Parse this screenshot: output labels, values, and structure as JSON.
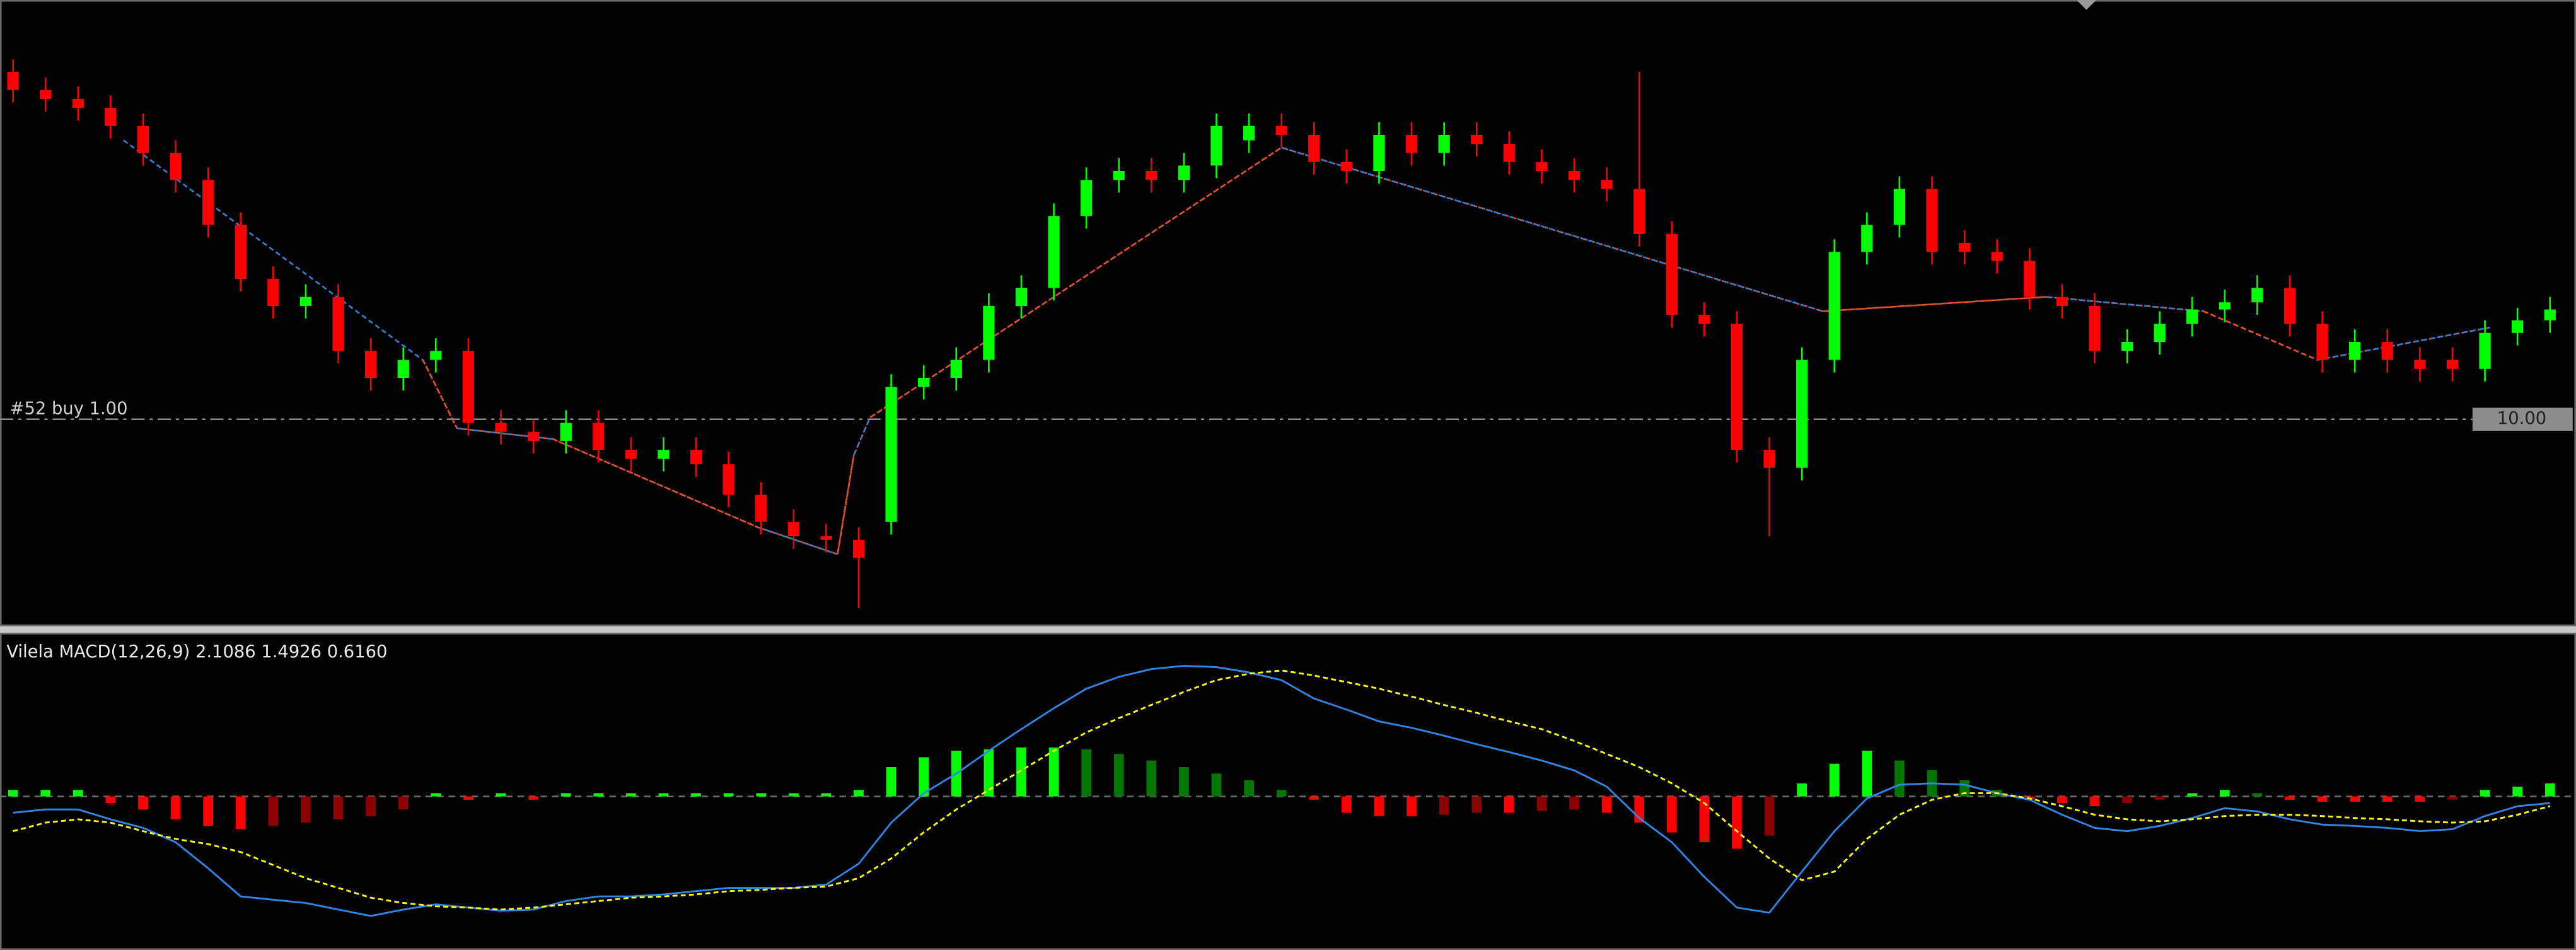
{
  "chart_data": [
    {
      "type": "candlestick",
      "open": [
        11.93,
        11.83,
        11.78,
        11.73,
        11.63,
        11.48,
        11.33,
        11.08,
        10.78,
        10.63,
        10.68,
        10.38,
        10.23,
        10.33,
        10.38,
        9.98,
        9.93,
        9.88,
        9.98,
        9.83,
        9.78,
        9.83,
        9.75,
        9.58,
        9.43,
        9.35,
        9.33,
        9.43,
        10.18,
        10.23,
        10.33,
        10.63,
        10.73,
        11.13,
        11.33,
        11.38,
        11.33,
        11.41,
        11.55,
        11.63,
        11.58,
        11.43,
        11.38,
        11.58,
        11.48,
        11.58,
        11.53,
        11.43,
        11.38,
        11.33,
        11.28,
        11.03,
        10.58,
        10.53,
        9.83,
        9.73,
        10.33,
        10.93,
        11.08,
        11.28,
        10.98,
        10.93,
        10.88,
        10.68,
        10.63,
        10.38,
        10.43,
        10.53,
        10.61,
        10.65,
        10.73,
        10.53,
        10.33,
        10.43,
        10.33,
        10.33,
        10.28,
        10.48,
        10.55
      ],
      "high": [
        12.0,
        11.9,
        11.85,
        11.8,
        11.7,
        11.55,
        11.4,
        11.15,
        10.85,
        10.75,
        10.75,
        10.45,
        10.4,
        10.45,
        10.45,
        10.05,
        10.0,
        10.05,
        10.05,
        9.9,
        9.9,
        9.9,
        9.82,
        9.65,
        9.5,
        9.42,
        9.4,
        10.25,
        10.3,
        10.4,
        10.7,
        10.8,
        11.2,
        11.4,
        11.45,
        11.45,
        11.48,
        11.7,
        11.7,
        11.7,
        11.65,
        11.5,
        11.65,
        11.65,
        11.65,
        11.65,
        11.6,
        11.5,
        11.45,
        11.4,
        11.93,
        11.1,
        10.65,
        10.6,
        9.9,
        10.4,
        11.0,
        11.15,
        11.35,
        11.35,
        11.05,
        11.0,
        10.95,
        10.75,
        10.7,
        10.5,
        10.6,
        10.68,
        10.72,
        10.8,
        10.8,
        10.6,
        10.5,
        10.5,
        10.4,
        10.4,
        10.55,
        10.62,
        10.68
      ],
      "low": [
        11.76,
        11.71,
        11.66,
        11.56,
        11.41,
        11.26,
        11.01,
        10.71,
        10.56,
        10.56,
        10.31,
        10.16,
        10.16,
        10.26,
        9.91,
        9.86,
        9.81,
        9.81,
        9.76,
        9.71,
        9.71,
        9.68,
        9.51,
        9.36,
        9.28,
        9.26,
        8.95,
        9.36,
        10.11,
        10.16,
        10.26,
        10.56,
        10.66,
        11.06,
        11.26,
        11.26,
        11.26,
        11.34,
        11.48,
        11.51,
        11.36,
        11.31,
        11.31,
        11.41,
        11.41,
        11.46,
        11.36,
        11.31,
        11.26,
        11.21,
        10.96,
        10.51,
        10.46,
        9.76,
        9.35,
        9.66,
        10.26,
        10.86,
        11.01,
        10.86,
        10.86,
        10.81,
        10.61,
        10.56,
        10.31,
        10.31,
        10.36,
        10.46,
        10.54,
        10.58,
        10.46,
        10.26,
        10.26,
        10.26,
        10.21,
        10.21,
        10.21,
        10.41,
        10.48
      ],
      "close": [
        11.83,
        11.78,
        11.73,
        11.63,
        11.48,
        11.33,
        11.08,
        10.78,
        10.63,
        10.68,
        10.38,
        10.23,
        10.33,
        10.38,
        9.98,
        9.93,
        9.88,
        9.98,
        9.83,
        9.78,
        9.83,
        9.75,
        9.58,
        9.43,
        9.35,
        9.33,
        9.23,
        10.18,
        10.23,
        10.33,
        10.63,
        10.73,
        11.13,
        11.33,
        11.38,
        11.33,
        11.41,
        11.63,
        11.63,
        11.58,
        11.43,
        11.38,
        11.58,
        11.48,
        11.58,
        11.53,
        11.43,
        11.38,
        11.33,
        11.28,
        11.03,
        10.58,
        10.53,
        9.83,
        9.73,
        10.33,
        10.93,
        11.08,
        11.28,
        10.93,
        10.93,
        10.88,
        10.68,
        10.63,
        10.38,
        10.43,
        10.53,
        10.61,
        10.65,
        10.73,
        10.53,
        10.33,
        10.43,
        10.33,
        10.28,
        10.28,
        10.48,
        10.55,
        10.61
      ],
      "up_color": "#00ff00",
      "down_color": "#ff0000",
      "xlim": [
        -0.4,
        78.8
      ],
      "ylim": [
        8.85,
        12.33
      ],
      "trend": {
        "x": [
          3.4,
          12.6,
          13.65,
          16.6,
          22.9,
          25.35,
          25.85,
          26.35,
          39,
          55.65,
          62.5,
          67.35,
          70.85,
          76.15
        ],
        "values": [
          11.55,
          10.33,
          9.95,
          9.89,
          9.4,
          9.25,
          9.8,
          10.01,
          11.51,
          10.6,
          10.68,
          10.6,
          10.33,
          10.51
        ],
        "segment_colors": [
          "#e0502a",
          "#2a7fd8"
        ]
      },
      "order_line": {
        "label": "#52 buy 1.00",
        "price": {
          "value": 10,
          "label": "10.00"
        }
      }
    },
    {
      "type": "macd",
      "title": "Vilela MACD(12,26,9) 2.1086 1.4926 0.6160",
      "xlim": [
        -0.4,
        78.8
      ],
      "ylim": [
        -2.35,
        2.48
      ],
      "macd": {
        "color": "#2f86e6",
        "values": [
          -0.25,
          -0.2,
          -0.2,
          -0.35,
          -0.48,
          -0.7,
          -1.1,
          -1.53,
          -1.58,
          -1.63,
          -1.73,
          -1.83,
          -1.73,
          -1.65,
          -1.7,
          -1.75,
          -1.73,
          -1.6,
          -1.53,
          -1.53,
          -1.5,
          -1.45,
          -1.4,
          -1.4,
          -1.4,
          -1.35,
          -1.03,
          -0.4,
          0.05,
          0.35,
          0.7,
          1.03,
          1.35,
          1.65,
          1.83,
          1.95,
          2.0,
          1.98,
          1.9,
          1.78,
          1.5,
          1.33,
          1.15,
          1.05,
          0.93,
          0.8,
          0.68,
          0.55,
          0.4,
          0.15,
          -0.33,
          -0.7,
          -1.23,
          -1.7,
          -1.78,
          -1.15,
          -0.53,
          -0.03,
          0.18,
          0.2,
          0.18,
          0.05,
          -0.05,
          -0.28,
          -0.48,
          -0.53,
          -0.45,
          -0.33,
          -0.18,
          -0.23,
          -0.35,
          -0.43,
          -0.45,
          -0.48,
          -0.53,
          -0.5,
          -0.3,
          -0.15,
          -0.1
        ]
      },
      "signal": {
        "color": "#ffff00",
        "values": [
          -0.53,
          -0.4,
          -0.35,
          -0.4,
          -0.53,
          -0.65,
          -0.73,
          -0.85,
          -1.05,
          -1.25,
          -1.4,
          -1.55,
          -1.63,
          -1.68,
          -1.7,
          -1.73,
          -1.7,
          -1.65,
          -1.6,
          -1.55,
          -1.53,
          -1.5,
          -1.45,
          -1.43,
          -1.4,
          -1.38,
          -1.25,
          -0.95,
          -0.55,
          -0.2,
          0.1,
          0.4,
          0.7,
          0.98,
          1.2,
          1.4,
          1.6,
          1.78,
          1.88,
          1.93,
          1.85,
          1.75,
          1.65,
          1.53,
          1.4,
          1.28,
          1.15,
          1.03,
          0.85,
          0.65,
          0.45,
          0.2,
          -0.1,
          -0.53,
          -0.95,
          -1.28,
          -1.15,
          -0.65,
          -0.28,
          -0.05,
          0.05,
          0.05,
          -0.03,
          -0.15,
          -0.28,
          -0.35,
          -0.38,
          -0.35,
          -0.3,
          -0.28,
          -0.28,
          -0.3,
          -0.33,
          -0.35,
          -0.38,
          -0.4,
          -0.38,
          -0.28,
          -0.15
        ]
      },
      "histogram": {
        "colors": {
          "up_strong": "#00ff00",
          "up_weak": "#007800",
          "down_strong": "#ff0000",
          "down_weak": "#8b0000"
        },
        "values": [
          0.1,
          0.1,
          0.1,
          -0.1,
          -0.2,
          -0.35,
          -0.45,
          -0.5,
          -0.45,
          -0.4,
          -0.35,
          -0.3,
          -0.2,
          0.05,
          -0.05,
          0.05,
          -0.05,
          0.05,
          0.05,
          0.05,
          0.05,
          0.05,
          0.05,
          0.05,
          0.05,
          0.05,
          0.1,
          0.45,
          0.6,
          0.7,
          0.72,
          0.75,
          0.75,
          0.72,
          0.65,
          0.55,
          0.45,
          0.35,
          0.25,
          0.1,
          -0.05,
          -0.25,
          -0.3,
          -0.3,
          -0.28,
          -0.25,
          -0.25,
          -0.22,
          -0.2,
          -0.25,
          -0.4,
          -0.55,
          -0.7,
          -0.8,
          -0.6,
          0.2,
          0.5,
          0.7,
          0.55,
          0.4,
          0.25,
          0.1,
          -0.05,
          -0.1,
          -0.15,
          -0.1,
          -0.05,
          0.05,
          0.1,
          0.05,
          -0.05,
          -0.08,
          -0.08,
          -0.08,
          -0.08,
          -0.05,
          0.1,
          0.15,
          0.2
        ]
      }
    }
  ]
}
